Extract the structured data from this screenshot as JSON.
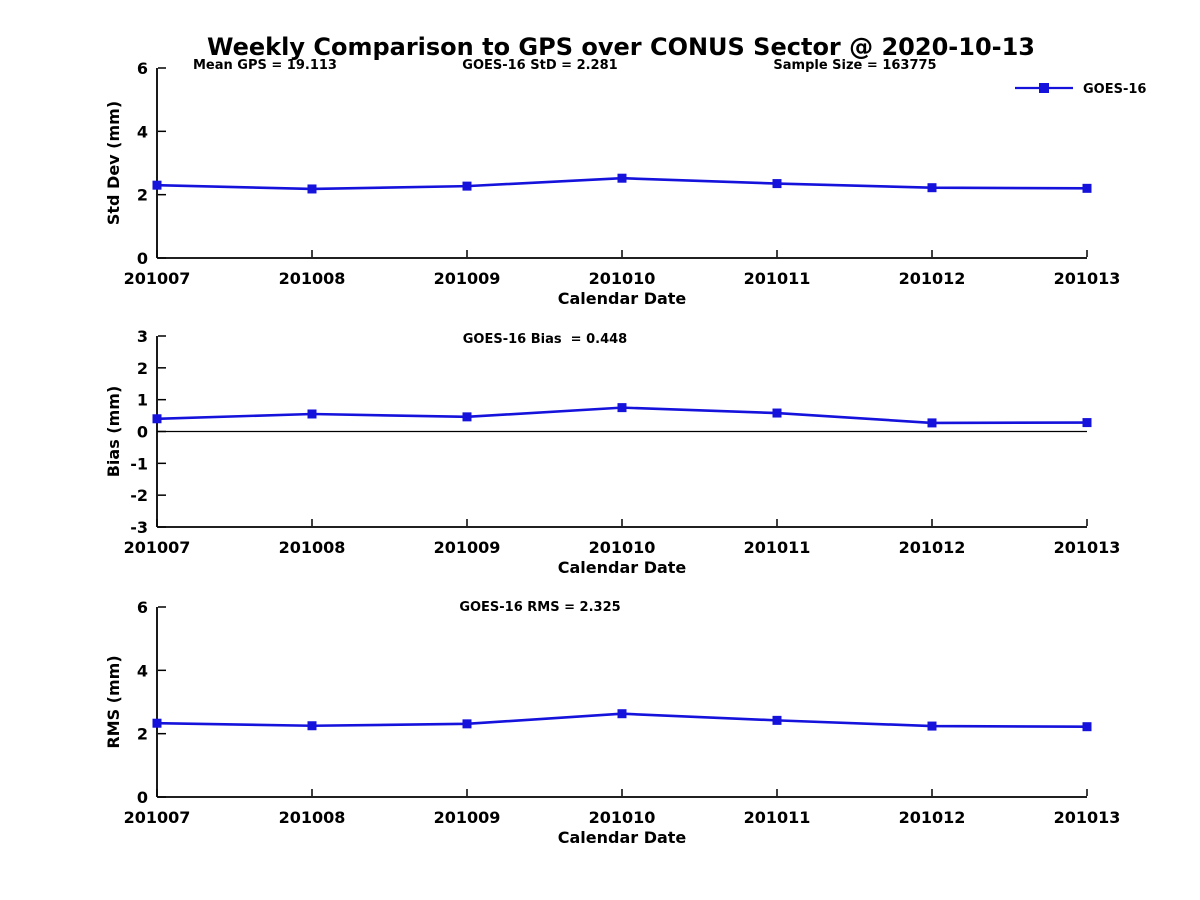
{
  "title": "Weekly Comparison to GPS over CONUS Sector @ 2020-10-13",
  "legend": {
    "label": "GOES-16"
  },
  "colors": {
    "series": "#1512dc",
    "axis": "#000000",
    "text": "#000000",
    "background": "#ffffff"
  },
  "chart_data": [
    {
      "type": "line",
      "panel": "std-dev",
      "annotations": [
        "Mean GPS = 19.113",
        "GOES-16 StD = 2.281",
        "Sample Size = 163775"
      ],
      "categories": [
        "201007",
        "201008",
        "201009",
        "201010",
        "201011",
        "201012",
        "201013"
      ],
      "series": [
        {
          "name": "GOES-16",
          "values": [
            2.3,
            2.18,
            2.27,
            2.52,
            2.35,
            2.22,
            2.2
          ]
        }
      ],
      "xlabel": "Calendar Date",
      "ylabel": "Std Dev (mm)",
      "ylim": [
        0,
        6
      ],
      "yticks": [
        0,
        2,
        4,
        6
      ],
      "grid": false,
      "legend_position": "top-right",
      "zero_line": false
    },
    {
      "type": "line",
      "panel": "bias",
      "annotations": [
        "GOES-16 Bias  = 0.448"
      ],
      "categories": [
        "201007",
        "201008",
        "201009",
        "201010",
        "201011",
        "201012",
        "201013"
      ],
      "series": [
        {
          "name": "GOES-16",
          "values": [
            0.4,
            0.55,
            0.46,
            0.75,
            0.58,
            0.27,
            0.28
          ]
        }
      ],
      "xlabel": "Calendar Date",
      "ylabel": "Bias (mm)",
      "ylim": [
        -3,
        3
      ],
      "yticks": [
        -3,
        -2,
        -1,
        0,
        1,
        2,
        3
      ],
      "grid": false,
      "legend_position": "none",
      "zero_line": true
    },
    {
      "type": "line",
      "panel": "rms",
      "annotations": [
        "GOES-16 RMS = 2.325"
      ],
      "categories": [
        "201007",
        "201008",
        "201009",
        "201010",
        "201011",
        "201012",
        "201013"
      ],
      "series": [
        {
          "name": "GOES-16",
          "values": [
            2.33,
            2.25,
            2.31,
            2.63,
            2.42,
            2.24,
            2.22
          ]
        }
      ],
      "xlabel": "Calendar Date",
      "ylabel": "RMS (mm)",
      "ylim": [
        0,
        6
      ],
      "yticks": [
        0,
        2,
        4,
        6
      ],
      "grid": false,
      "legend_position": "none",
      "zero_line": false
    }
  ]
}
